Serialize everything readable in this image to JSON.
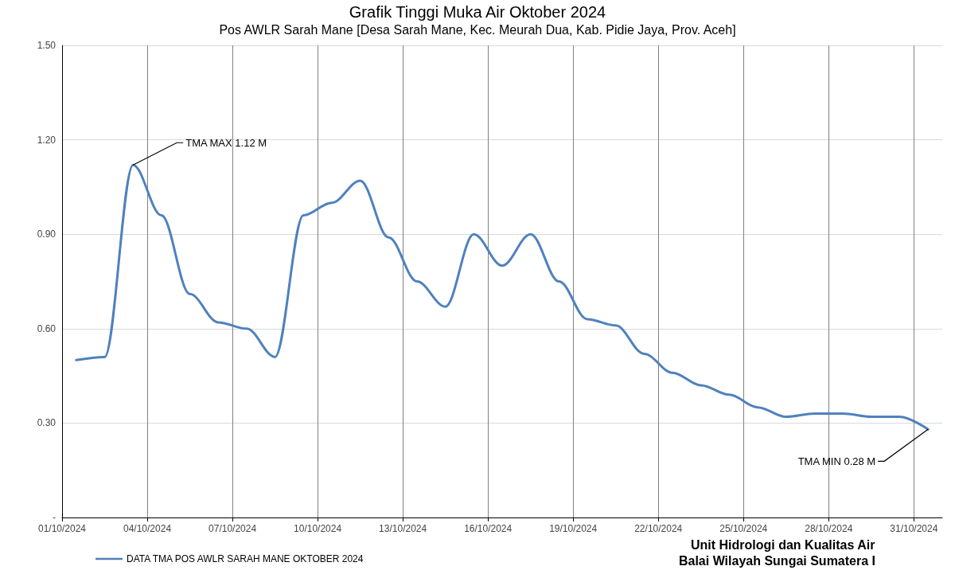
{
  "chart_data": {
    "type": "line",
    "title": "Grafik Tinggi Muka Air Oktober 2024",
    "subtitle": "Pos AWLR Sarah Mane [Desa Sarah Mane, Kec. Meurah Dua, Kab. Pidie Jaya, Prov. Aceh]",
    "x": [
      "2024-10-01T12:00",
      "2024-10-02T12:00",
      "2024-10-03T12:00",
      "2024-10-04T12:00",
      "2024-10-05T12:00",
      "2024-10-06T12:00",
      "2024-10-07T12:00",
      "2024-10-08T12:00",
      "2024-10-09T12:00",
      "2024-10-10T12:00",
      "2024-10-11T12:00",
      "2024-10-12T12:00",
      "2024-10-13T12:00",
      "2024-10-14T12:00",
      "2024-10-15T12:00",
      "2024-10-16T12:00",
      "2024-10-17T12:00",
      "2024-10-18T12:00",
      "2024-10-19T12:00",
      "2024-10-20T12:00",
      "2024-10-21T12:00",
      "2024-10-22T12:00",
      "2024-10-23T12:00",
      "2024-10-24T12:00",
      "2024-10-25T12:00",
      "2024-10-26T12:00",
      "2024-10-27T12:00",
      "2024-10-28T12:00",
      "2024-10-29T12:00",
      "2024-10-30T12:00",
      "2024-10-31T12:00"
    ],
    "series": [
      {
        "name": "DATA TMA POS AWLR SARAH MANE OKTOBER 2024",
        "color": "#4f81bd",
        "values": [
          0.5,
          0.51,
          1.12,
          0.96,
          0.71,
          0.62,
          0.6,
          0.51,
          0.96,
          1.0,
          1.07,
          0.89,
          0.75,
          0.67,
          0.9,
          0.8,
          0.9,
          0.75,
          0.63,
          0.61,
          0.52,
          0.46,
          0.42,
          0.39,
          0.35,
          0.32,
          0.33,
          0.33,
          0.32,
          0.32,
          0.28
        ]
      }
    ],
    "xlim": [
      "2024-10-01",
      "2024-11-01"
    ],
    "xticks": [
      {
        "value": "2024-10-01",
        "label": "01/10/2024"
      },
      {
        "value": "2024-10-04",
        "label": "04/10/2024"
      },
      {
        "value": "2024-10-07",
        "label": "07/10/2024"
      },
      {
        "value": "2024-10-10",
        "label": "10/10/2024"
      },
      {
        "value": "2024-10-13",
        "label": "13/10/2024"
      },
      {
        "value": "2024-10-16",
        "label": "16/10/2024"
      },
      {
        "value": "2024-10-19",
        "label": "19/10/2024"
      },
      {
        "value": "2024-10-22",
        "label": "22/10/2024"
      },
      {
        "value": "2024-10-25",
        "label": "25/10/2024"
      },
      {
        "value": "2024-10-28",
        "label": "28/10/2024"
      },
      {
        "value": "2024-10-31",
        "label": "31/10/2024"
      }
    ],
    "ylim": [
      0,
      1.5
    ],
    "yticks": [
      {
        "value": 0,
        "label": "-"
      },
      {
        "value": 0.3,
        "label": "0.30"
      },
      {
        "value": 0.6,
        "label": "0.60"
      },
      {
        "value": 0.9,
        "label": "0.90"
      },
      {
        "value": 1.2,
        "label": "1.20"
      },
      {
        "value": 1.5,
        "label": "1.50"
      }
    ],
    "annotations": [
      {
        "text": "TMA MAX 1.12 M",
        "x": "2024-10-03T12:00",
        "y": 1.12
      },
      {
        "text": "TMA MIN 0.28 M",
        "x": "2024-10-31T12:00",
        "y": 0.28
      },
      "Unit Hidrologi dan Kualitas Air",
      "Balai Wilayah Sungai Sumatera I"
    ],
    "grid": true,
    "legend": "bottom left",
    "marker": "none",
    "line_style": "solid"
  }
}
